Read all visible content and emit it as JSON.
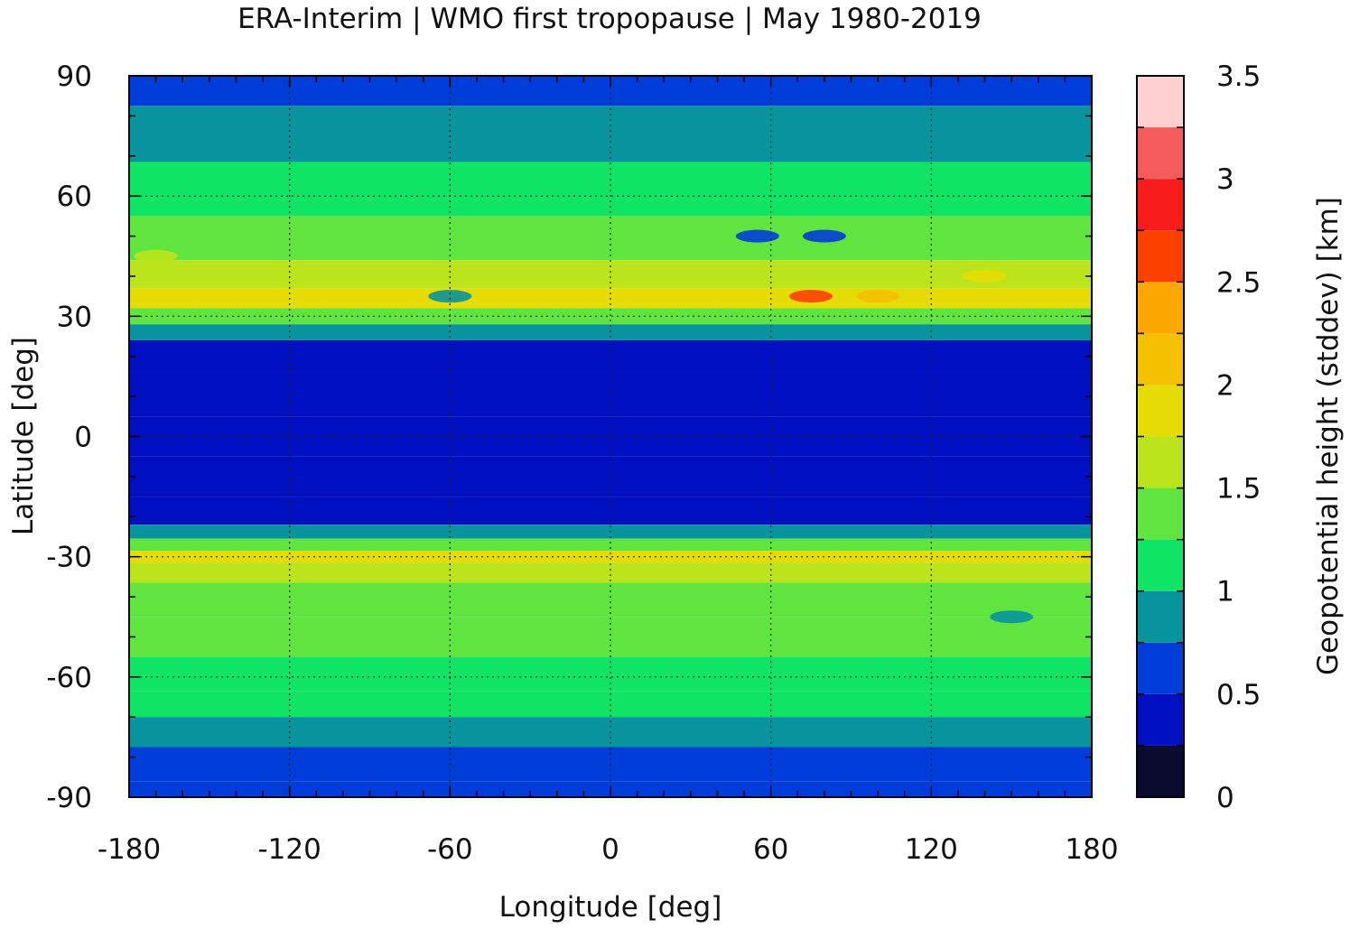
{
  "chart_data": {
    "type": "heatmap",
    "title": "ERA-Interim | WMO first tropopause | May 1980-2019",
    "xlabel": "Longitude [deg]",
    "ylabel": "Latitude [deg]",
    "colorbar_label": "Geopotential height (stddev) [km]",
    "xlim": [
      -180,
      180
    ],
    "ylim": [
      -90,
      90
    ],
    "x_ticks": [
      -180,
      -120,
      -60,
      0,
      60,
      120,
      180
    ],
    "x_tick_labels": [
      "-180",
      "-120",
      "-60",
      "0",
      "60",
      "120",
      "180"
    ],
    "y_ticks": [
      -90,
      -60,
      -30,
      0,
      30,
      60,
      90
    ],
    "y_tick_labels": [
      "-90",
      "-60",
      "-30",
      "0",
      "30",
      "60",
      "90"
    ],
    "colorbar_ticks": [
      0,
      0.5,
      1,
      1.5,
      2,
      2.5,
      3,
      3.5
    ],
    "colorbar_tick_labels": [
      "0",
      "0.5",
      "1",
      "1.5",
      "2",
      "2.5",
      "3",
      "3.5"
    ],
    "colorbar_range": [
      0,
      3.5
    ],
    "colorbar_levels": [
      0,
      0.25,
      0.5,
      0.75,
      1,
      1.25,
      1.5,
      1.75,
      2,
      2.25,
      2.5,
      2.75,
      3,
      3.25,
      3.5
    ],
    "colorbar_colors": [
      "#0b0b30",
      "#0010c0",
      "#003cd8",
      "#08949c",
      "#10e464",
      "#60e440",
      "#bce41c",
      "#e4dc04",
      "#f4c000",
      "#fca800",
      "#fc4000",
      "#f81c1c",
      "#f45c5c",
      "#ffd0d0"
    ],
    "grid": true,
    "coastlines": true,
    "band_profile_by_latitude": {
      "latitude": [
        90,
        75,
        62,
        48,
        40,
        34,
        30,
        26,
        22,
        10,
        0,
        -10,
        -20,
        -24,
        -27,
        -30,
        -33,
        -40,
        -50,
        -60,
        -67,
        -73,
        -82,
        -90
      ],
      "value": [
        0.5,
        0.85,
        1.1,
        1.35,
        1.5,
        1.8,
        1.25,
        0.8,
        0.45,
        0.35,
        0.35,
        0.35,
        0.45,
        0.8,
        1.3,
        1.9,
        1.6,
        1.25,
        1.3,
        1.15,
        1.05,
        0.9,
        0.7,
        0.6
      ]
    },
    "features": [
      {
        "lon": 75,
        "lat": 35,
        "value": 2.6
      },
      {
        "lon": 100,
        "lat": 35,
        "value": 2.1
      },
      {
        "lon": 140,
        "lat": 40,
        "value": 1.8
      },
      {
        "lon": 55,
        "lat": 50,
        "value": 0.6
      },
      {
        "lon": 80,
        "lat": 50,
        "value": 0.6
      },
      {
        "lon": -60,
        "lat": 35,
        "value": 0.85
      },
      {
        "lon": -170,
        "lat": 45,
        "value": 1.55
      },
      {
        "lon": -30,
        "lat": 85,
        "value": 0.55
      },
      {
        "lon": 150,
        "lat": -45,
        "value": 0.85
      }
    ]
  }
}
